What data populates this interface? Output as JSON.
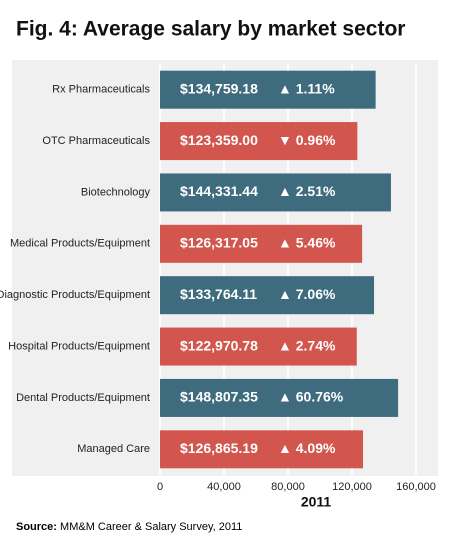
{
  "chart_data": {
    "type": "bar",
    "orientation": "horizontal",
    "title": "Fig. 4: Average salary by market sector",
    "categories": [
      "Rx Pharmaceuticals",
      "OTC Pharmaceuticals",
      "Biotechnology",
      "Medical Products/Equipment",
      "Diagnostic Products/Equipment",
      "Hospital Products/Equipment",
      "Dental Products/Equipment",
      "Managed Care"
    ],
    "values": [
      134759.18,
      123359.0,
      144331.44,
      126317.05,
      133764.11,
      122970.78,
      148807.35,
      126865.19
    ],
    "value_labels": [
      "$134,759.18",
      "$123,359.00",
      "$144,331.44",
      "$126,317.05",
      "$133,764.11",
      "$122,970.78",
      "$148,807.35",
      "$126,865.19"
    ],
    "change_labels": [
      "▲ 1.11%",
      "▼ 0.96%",
      "▲ 2.51%",
      "▲ 5.46%",
      "▲ 7.06%",
      "▲ 2.74%",
      "▲ 60.76%",
      "▲ 4.09%"
    ],
    "colors": [
      "#3e6b7d",
      "#d2564d",
      "#3e6b7d",
      "#d2564d",
      "#3e6b7d",
      "#d2564d",
      "#3e6b7d",
      "#d2564d"
    ],
    "xlim": [
      0,
      160000
    ],
    "xticks": [
      0,
      {
        "value": 40000,
        "label": "40,000"
      },
      {
        "value": 80000,
        "label": "80,000"
      },
      {
        "value": 120000,
        "label": "120,000"
      },
      {
        "value": 160000,
        "label": "160,000"
      }
    ],
    "xlabel": "2011",
    "grid": true,
    "source_label": "Source:",
    "source": "MM&M Career & Salary Survey, 2011"
  }
}
